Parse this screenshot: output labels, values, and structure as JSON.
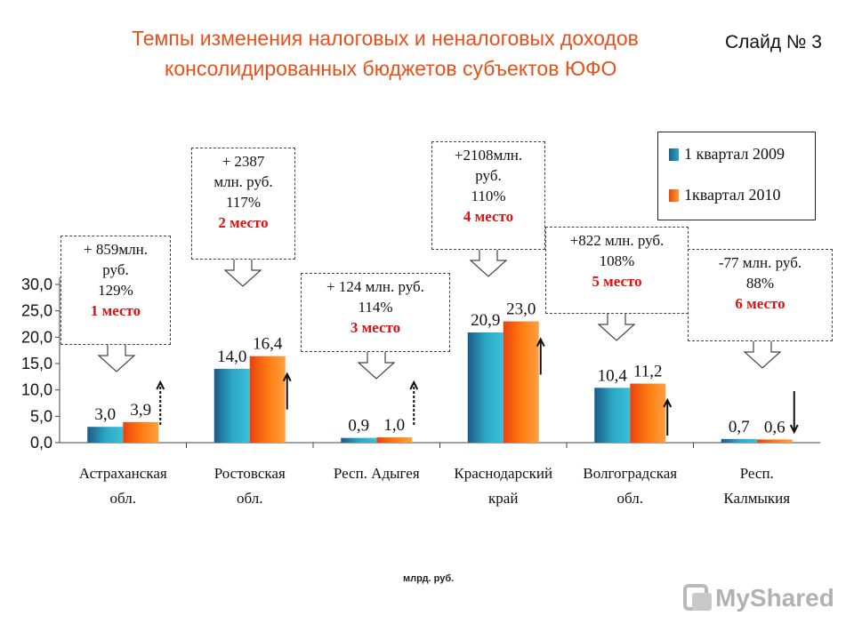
{
  "header": {
    "title_line1": "Темпы изменения налоговых и неналоговых доходов",
    "title_line2": "консолидированных бюджетов субъектов ЮФО",
    "slide_number": "Слайд № 3"
  },
  "unit_label": "млрд. руб.",
  "watermark": "MyShared",
  "colors": {
    "title": "#e8501a",
    "series1": "#2aa6c4",
    "series2": "#ff7a10",
    "place": "#e01010"
  },
  "chart_data": {
    "type": "bar",
    "categories": [
      [
        "Астраханская",
        "обл."
      ],
      [
        "Ростовская",
        "обл."
      ],
      [
        "Респ. Адыгея",
        ""
      ],
      [
        "Краснодарский",
        "край"
      ],
      [
        "Волгоградская",
        "обл."
      ],
      [
        "Респ.",
        "Калмыкия"
      ]
    ],
    "series": [
      {
        "name": "1 квартал 2009",
        "values": [
          3.0,
          14.0,
          0.9,
          20.9,
          10.4,
          0.7
        ],
        "labels": [
          "3,0",
          "14,0",
          "0,9",
          "20,9",
          "10,4",
          "0,7"
        ]
      },
      {
        "name": "1квартал 2010",
        "values": [
          3.9,
          16.4,
          1.0,
          23.0,
          11.2,
          0.6
        ],
        "labels": [
          "3,9",
          "16,4",
          "1,0",
          "23,0",
          "11,2",
          "0,6"
        ]
      }
    ],
    "yticks": [
      "0,0",
      "5,0",
      "10,0",
      "15,0",
      "20,0",
      "25,0",
      "30,0"
    ],
    "ylim": [
      0,
      30
    ],
    "trend": [
      "up",
      "up",
      "up",
      "up",
      "up",
      "down"
    ],
    "annotations": [
      {
        "lines": [
          "+ 859млн.",
          "руб.",
          "129%"
        ],
        "place": "1 место"
      },
      {
        "lines": [
          "+ 2387",
          "млн. руб.",
          "117%"
        ],
        "place": "2 место"
      },
      {
        "lines": [
          "+ 124 млн. руб.",
          "114%"
        ],
        "place": "3 место"
      },
      {
        "lines": [
          "+2108млн.",
          "руб.",
          "110%"
        ],
        "place": "4 место"
      },
      {
        "lines": [
          "+822 млн. руб.",
          "108%"
        ],
        "place": "5 место"
      },
      {
        "lines": [
          "-77 млн. руб.",
          "88%"
        ],
        "place": "6 место"
      }
    ]
  }
}
